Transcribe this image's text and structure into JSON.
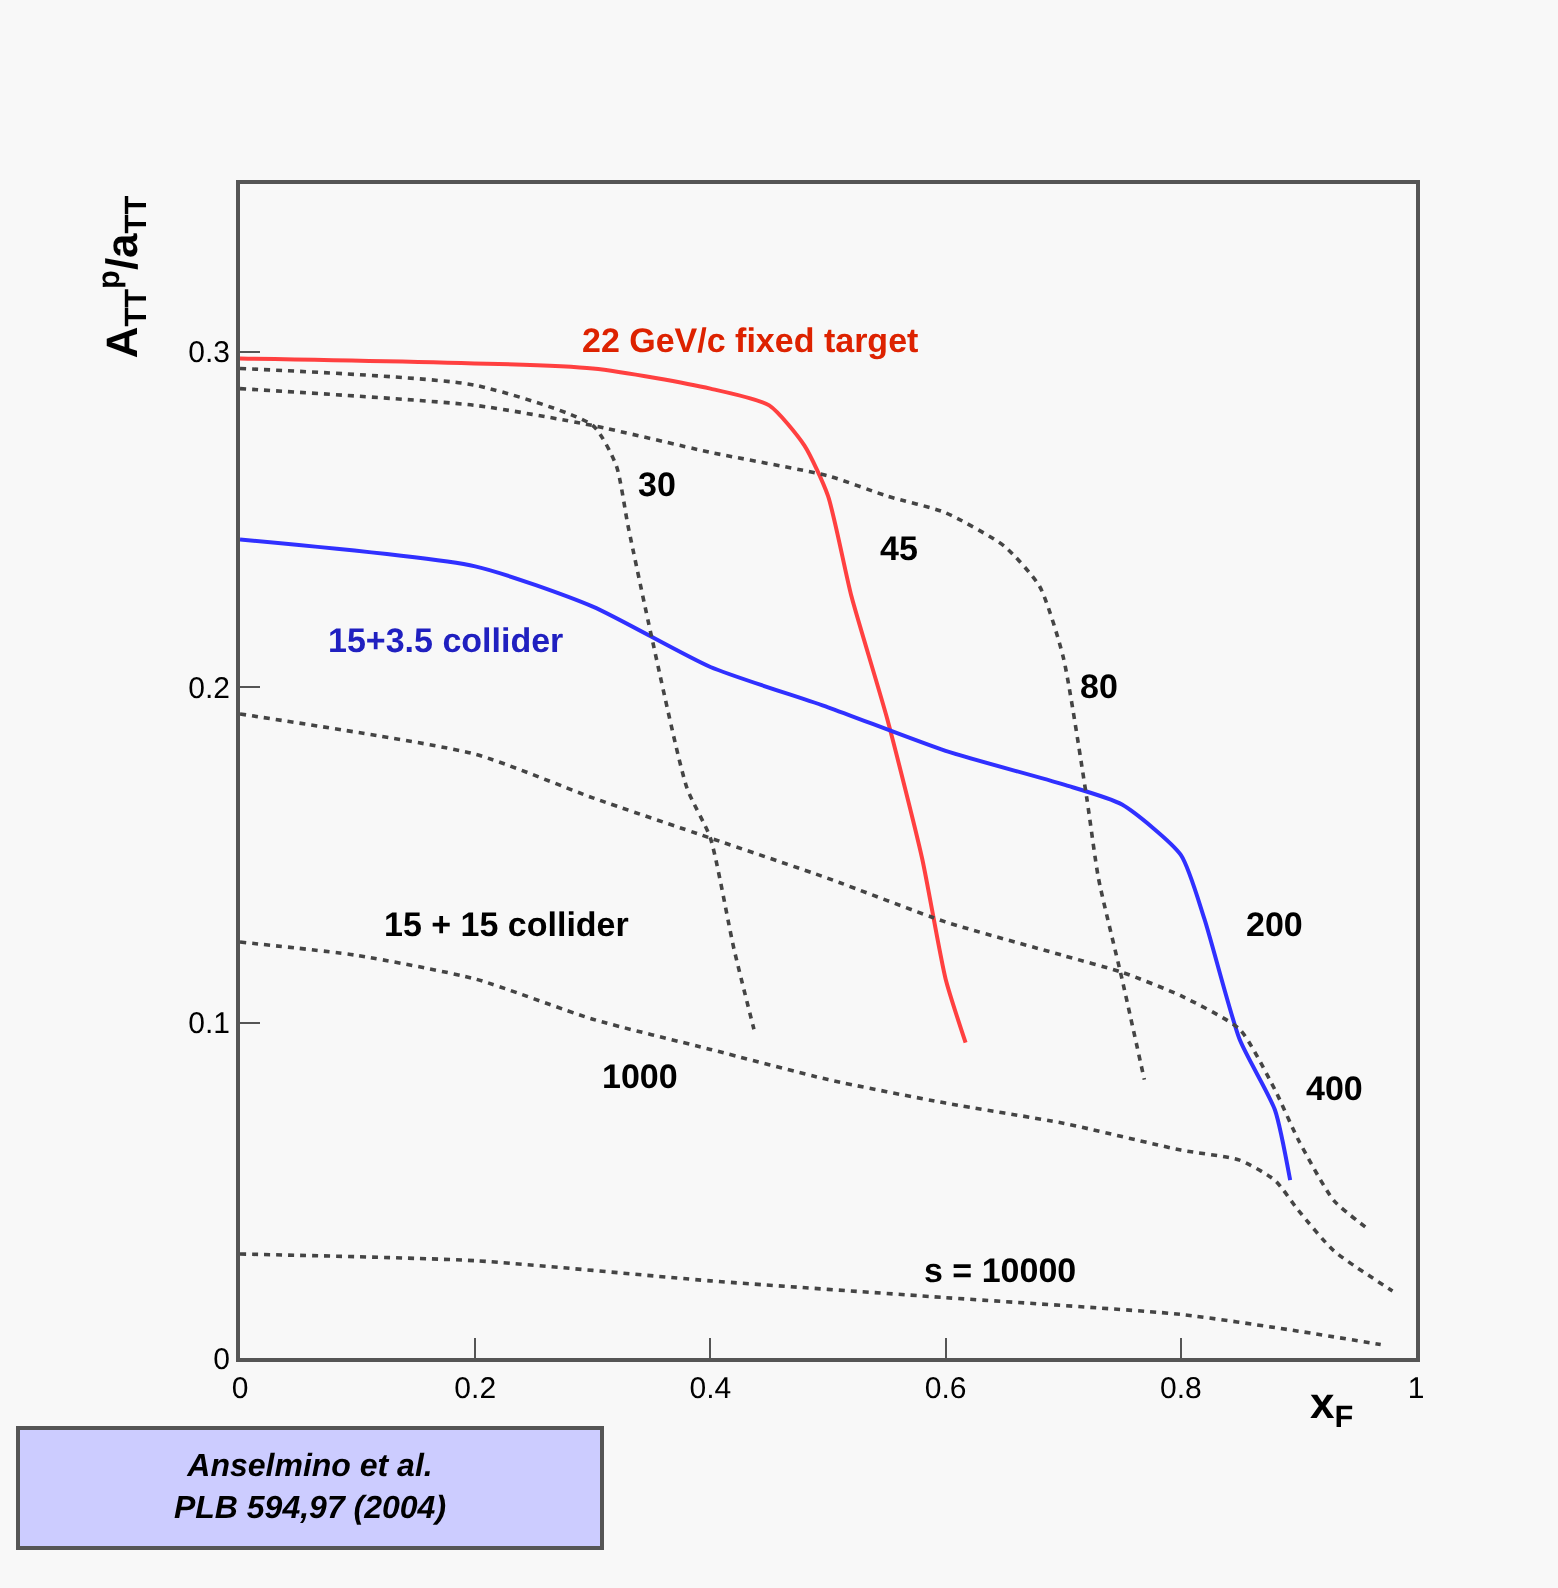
{
  "chart_data": {
    "type": "line",
    "xlabel": "x$_{F}$",
    "ylabel": "A$_{TT}$$^{p}$/a$_{TT}$",
    "xlim": [
      0,
      1
    ],
    "ylim": [
      0,
      0.35
    ],
    "xticks": [
      0,
      0.2,
      0.4,
      0.6,
      0.8,
      1
    ],
    "yticks": [
      0,
      0.1,
      0.2,
      0.3
    ],
    "grid": false,
    "series": [
      {
        "color": "#ff4040",
        "line_style": "solid",
        "x": [
          0,
          0.3,
          0.4,
          0.45,
          0.48,
          0.5,
          0.52,
          0.55,
          0.58,
          0.6,
          0.617
        ],
        "values": [
          0.298,
          0.295,
          0.289,
          0.284,
          0.272,
          0.257,
          0.227,
          0.191,
          0.149,
          0.113,
          0.094
        ]
      },
      {
        "color": "#3030ff",
        "line_style": "solid",
        "x": [
          0,
          0.2,
          0.3,
          0.4,
          0.5,
          0.6,
          0.7,
          0.75,
          0.8,
          0.82,
          0.85,
          0.88,
          0.893
        ],
        "values": [
          0.244,
          0.236,
          0.224,
          0.206,
          0.194,
          0.181,
          0.171,
          0.165,
          0.15,
          0.131,
          0.095,
          0.074,
          0.053
        ]
      },
      {
        "color": "#444444",
        "line_style": "dotted",
        "x": [
          0,
          0.2,
          0.3,
          0.32,
          0.33,
          0.35,
          0.38,
          0.4,
          0.42,
          0.437
        ],
        "values": [
          0.295,
          0.29,
          0.278,
          0.266,
          0.248,
          0.215,
          0.17,
          0.155,
          0.122,
          0.098
        ]
      },
      {
        "color": "#444444",
        "line_style": "dotted",
        "x": [
          0,
          0.2,
          0.3,
          0.4,
          0.5,
          0.55,
          0.6,
          0.65,
          0.68,
          0.7,
          0.72,
          0.73,
          0.75,
          0.769
        ],
        "values": [
          0.289,
          0.284,
          0.278,
          0.27,
          0.263,
          0.257,
          0.252,
          0.242,
          0.23,
          0.209,
          0.167,
          0.143,
          0.113,
          0.083
        ]
      },
      {
        "color": "#444444",
        "line_style": "dotted",
        "x": [
          0,
          0.2,
          0.3,
          0.4,
          0.5,
          0.6,
          0.7,
          0.75,
          0.8,
          0.85,
          0.88,
          0.9,
          0.93,
          0.961
        ],
        "values": [
          0.192,
          0.18,
          0.167,
          0.155,
          0.143,
          0.13,
          0.12,
          0.115,
          0.108,
          0.098,
          0.08,
          0.065,
          0.047,
          0.038
        ]
      },
      {
        "color": "#444444",
        "line_style": "dotted",
        "x": [
          0,
          0.1,
          0.2,
          0.3,
          0.4,
          0.5,
          0.6,
          0.7,
          0.8,
          0.85,
          0.88,
          0.9,
          0.93,
          0.98
        ],
        "values": [
          0.124,
          0.12,
          0.113,
          0.101,
          0.092,
          0.083,
          0.076,
          0.07,
          0.062,
          0.059,
          0.053,
          0.044,
          0.032,
          0.02
        ]
      },
      {
        "color": "#444444",
        "line_style": "dotted",
        "x": [
          0,
          0.2,
          0.4,
          0.6,
          0.8,
          0.9,
          0.97
        ],
        "values": [
          0.031,
          0.029,
          0.023,
          0.018,
          0.013,
          0.008,
          0.004
        ]
      }
    ],
    "annotations": [
      "22 GeV/c fixed target",
      "30",
      "45",
      "80",
      "15+3.5 collider",
      "200",
      "15 + 15 collider",
      "1000",
      "400",
      "s = 10000",
      "Anselmino et al.\nPLB 594,97 (2004)"
    ]
  }
}
